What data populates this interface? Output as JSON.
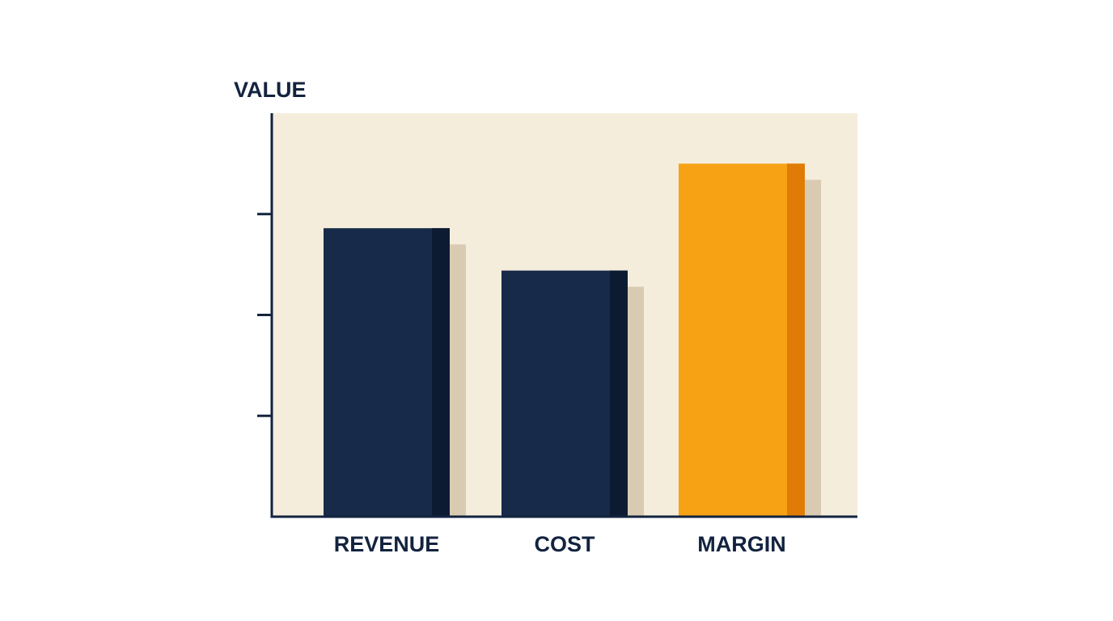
{
  "chart_data": {
    "type": "bar",
    "ylabel": "VALUE",
    "xlabel": "",
    "categories": [
      "REVENUE",
      "COST",
      "MARGIN"
    ],
    "values": [
      71.5,
      61,
      87.5
    ],
    "ylim": [
      0,
      100
    ],
    "yticks": [
      25,
      50,
      75
    ],
    "grid": false,
    "legend": "none",
    "colors": {
      "plot_background": "#f5eddc",
      "axis": "#13233f",
      "bars": [
        "#172a49",
        "#172a49",
        "#f7a214"
      ],
      "bar_edges": [
        "#0c1b31",
        "#0c1b31",
        "#e07c06"
      ],
      "shadow": "#d9cbb2"
    }
  }
}
